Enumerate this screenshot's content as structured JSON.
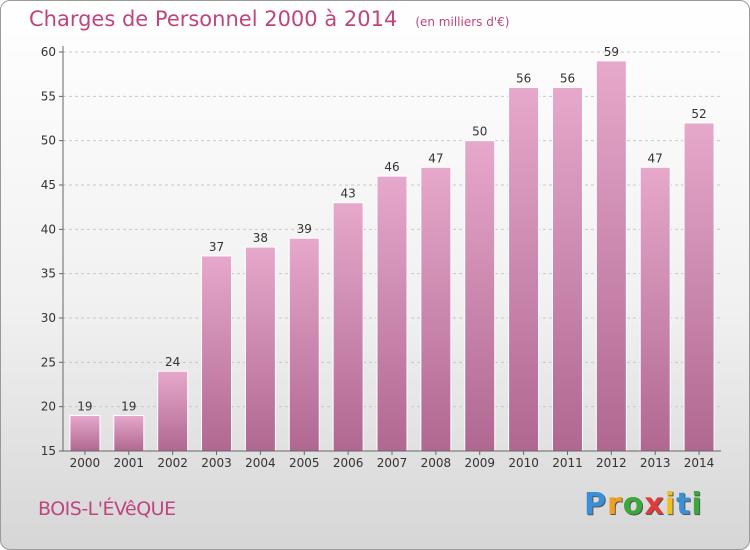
{
  "chart_data": {
    "type": "bar",
    "title": "Charges de Personnel 2000 à 2014",
    "subtitle": "(en milliers d'€)",
    "categories": [
      "2000",
      "2001",
      "2002",
      "2003",
      "2004",
      "2005",
      "2006",
      "2007",
      "2008",
      "2009",
      "2010",
      "2011",
      "2012",
      "2013",
      "2014"
    ],
    "values": [
      19,
      19,
      24,
      37,
      38,
      39,
      43,
      46,
      47,
      50,
      56,
      56,
      59,
      47,
      52
    ],
    "ylim": [
      15,
      60
    ],
    "yticks": [
      15,
      20,
      25,
      30,
      35,
      40,
      45,
      50,
      55,
      60
    ],
    "grid": true,
    "bar_color": "#c8789f"
  },
  "commune": "BOIS-L'ÉVêQUE",
  "logo": {
    "letters": [
      "P",
      "r",
      "o",
      "x",
      "i",
      "t",
      "i"
    ],
    "colors": [
      "#3a8fd6",
      "#f0a020",
      "#3aa83a",
      "#e03a3a",
      "#f0c020",
      "#3a8fd6",
      "#3aa83a"
    ]
  }
}
